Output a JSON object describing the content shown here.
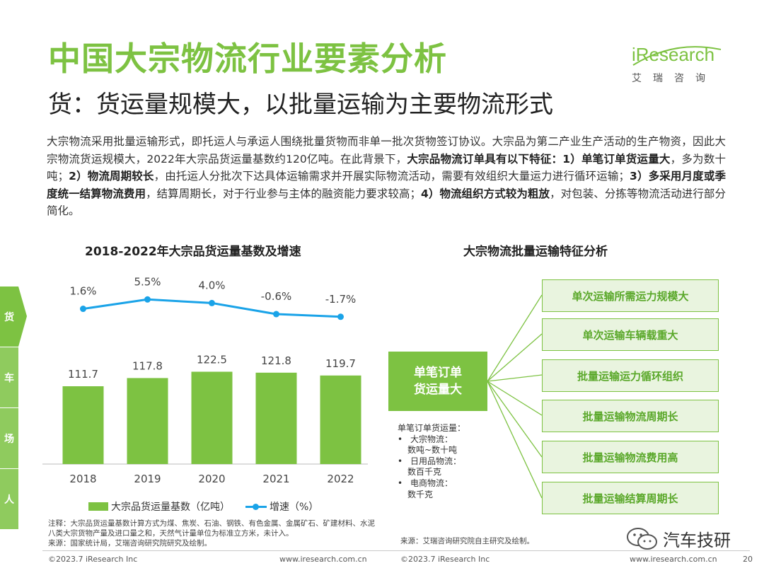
{
  "header": {
    "title": "中国大宗物流行业要素分析",
    "subtitle": "货：货运量规模大，以批量运输为主要物流形式"
  },
  "logo": {
    "wordmark": "iResearch",
    "cn_name": "艾瑞咨询"
  },
  "intro": {
    "p1": "大宗物流采用批量运输形式，即托运人与承运人围绕批量货物而非单一批次货物签订协议。大宗品为第二产业生产活动的生产物资，因此大宗物流货运规模大，2022年大宗品货运量基数约120亿吨。在此背景下，",
    "b1": "大宗品物流订单具有以下特征：1）单笔订单货运量大",
    "p2": "，多为数十吨；",
    "b2": "2）物流周期较长",
    "p3": "，由托运人分批次下达具体运输需求并开展实际物流活动，需要有效组织大量运力进行循环运输；",
    "b3": "3）多采用月度或季度统一结算物流费用",
    "p4": "，结算周期长，对于行业参与主体的融资能力要求较高；",
    "b4": "4）物流组织方式较为粗放",
    "p5": "，对包装、分拣等物流活动进行部分简化。"
  },
  "side_tabs": [
    "货",
    "车",
    "场",
    "人"
  ],
  "left_section": {
    "title": "2018-2022年大宗品货运量基数及增速"
  },
  "chart_data": {
    "type": "bar",
    "title": "2018-2022年大宗品货运量基数及增速",
    "categories": [
      "2018",
      "2019",
      "2020",
      "2021",
      "2022"
    ],
    "series": [
      {
        "name": "大宗品货运量基数（亿吨）",
        "type": "bar",
        "values": [
          111.7,
          117.8,
          122.5,
          121.8,
          119.7
        ]
      },
      {
        "name": "增速（%）",
        "type": "line",
        "values": [
          1.6,
          5.5,
          4.0,
          -0.6,
          -1.7
        ],
        "labels": [
          "1.6%",
          "5.5%",
          "4.0%",
          "-0.6%",
          "-1.7%"
        ]
      }
    ],
    "colors": {
      "bar": "#7dc242",
      "line": "#1aa3e8"
    },
    "legend_position": "bottom",
    "grid": false
  },
  "legend": {
    "bar_label": "大宗品货运量基数（亿吨）",
    "line_label": "增速（%）"
  },
  "notes": {
    "note": "注释：大宗品货运量基数计算方式为煤、焦炭、石油、钢铁、有色金属、金属矿石、矿建材料、水泥八类大宗货物产量及进口量之和，天然气计量单位为标准立方米，未计入。",
    "source": "来源：国家统计局，艾瑞咨询研究院研究及绘制。"
  },
  "right_section": {
    "title": "大宗物流批量运输特征分析",
    "center": "单笔订单\n货运量大",
    "features": [
      "单次运输所需运力规模大",
      "单次运输车辆载重大",
      "批量运输运力循环组织",
      "批量运输物流周期长",
      "批量运输物流费用高",
      "批量运输结算周期长"
    ],
    "volume_title": "单笔订单货运量：",
    "volume_items": [
      {
        "name": "大宗物流：",
        "value": "数吨~数十吨"
      },
      {
        "name": "日用品物流：",
        "value": "数百千克"
      },
      {
        "name": "电商物流：",
        "value": "数千克"
      }
    ],
    "source": "来源：艾瑞咨询研究院自主研究及绘制。"
  },
  "footer": {
    "copyright_left": "©2023.7 iResearch Inc",
    "url_left": "www.iresearch.com.cn",
    "copyright_right": "©2023.7 iResearch Inc",
    "url_right": "www.iresearch.com.cn",
    "page": "20"
  },
  "watermark": {
    "text": "汽车技研",
    "icon": "wechat-icon"
  },
  "colors": {
    "brand_green": "#7dc242",
    "line_blue": "#1aa3e8"
  }
}
